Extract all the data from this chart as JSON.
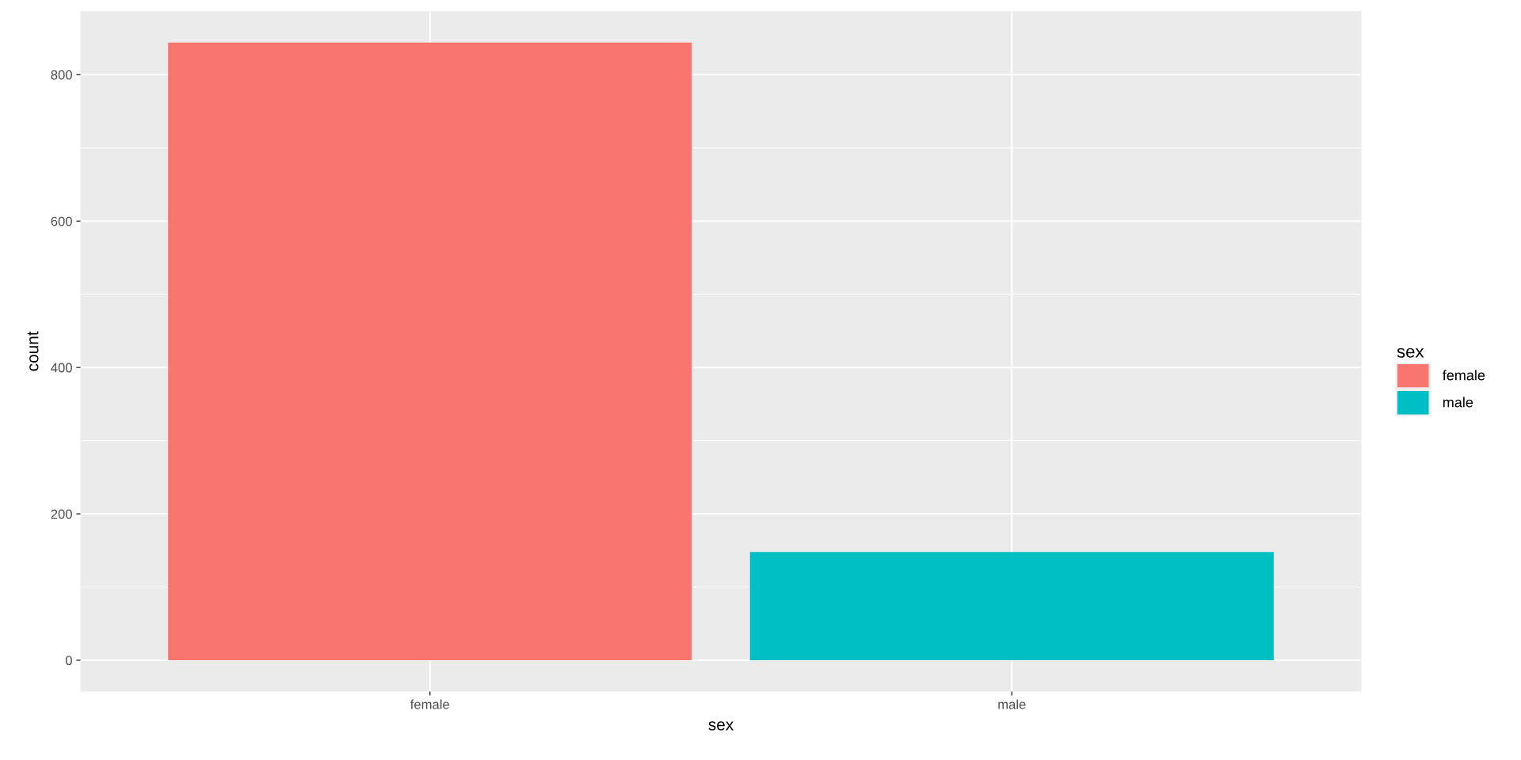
{
  "chart_data": {
    "type": "bar",
    "xlabel": "sex",
    "ylabel": "count",
    "legend_title": "sex",
    "categories": [
      "female",
      "male"
    ],
    "stacked": true,
    "series": [
      {
        "name": "female",
        "color": "#f8766d",
        "values": [
          844,
          null
        ]
      },
      {
        "name": "male",
        "color": "#00bfc4",
        "values": [
          null,
          148
        ]
      }
    ],
    "ylim": [
      -42.2,
      886.2
    ],
    "yticks": [
      0,
      200,
      400,
      600,
      800
    ],
    "grid": true,
    "legend": "right"
  }
}
